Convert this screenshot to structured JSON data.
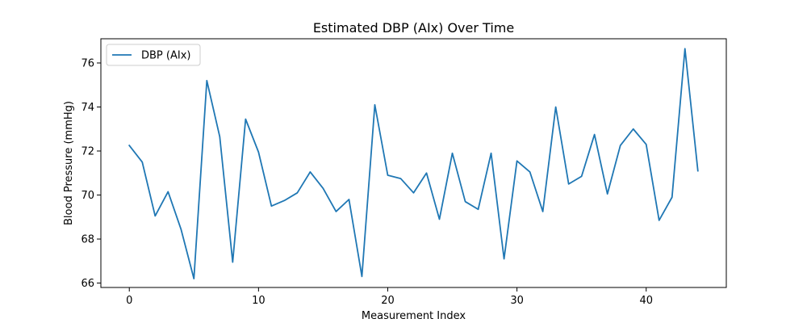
{
  "chart_data": {
    "type": "line",
    "title": "Estimated DBP (AIx) Over Time",
    "xlabel": "Measurement Index",
    "ylabel": "Blood Pressure (mmHg)",
    "xlim": [
      -2.2,
      46.2
    ],
    "ylim": [
      65.8,
      77.1
    ],
    "xticks": [
      0,
      10,
      20,
      30,
      40
    ],
    "yticks": [
      66,
      68,
      70,
      72,
      74,
      76
    ],
    "grid": false,
    "legend": {
      "placement": "top-left"
    },
    "series": [
      {
        "name": "DBP (AIx)",
        "color": "#1f77b4",
        "x": [
          0,
          1,
          2,
          3,
          4,
          5,
          6,
          7,
          8,
          9,
          10,
          11,
          12,
          13,
          14,
          15,
          16,
          17,
          18,
          19,
          20,
          21,
          22,
          23,
          24,
          25,
          26,
          27,
          28,
          29,
          30,
          31,
          32,
          33,
          34,
          35,
          36,
          37,
          38,
          39,
          40,
          41,
          42,
          43,
          44
        ],
        "values": [
          72.25,
          71.5,
          69.05,
          70.15,
          68.45,
          66.2,
          75.2,
          72.65,
          66.95,
          73.45,
          71.95,
          69.5,
          69.75,
          70.1,
          71.05,
          70.3,
          69.25,
          69.8,
          66.3,
          74.1,
          70.9,
          70.75,
          70.1,
          71.0,
          68.9,
          71.9,
          69.7,
          69.35,
          71.9,
          67.1,
          71.55,
          71.05,
          69.25,
          74.0,
          70.5,
          70.85,
          72.75,
          70.05,
          72.25,
          73.0,
          72.3,
          68.85,
          69.9,
          76.65,
          71.1
        ]
      }
    ]
  }
}
